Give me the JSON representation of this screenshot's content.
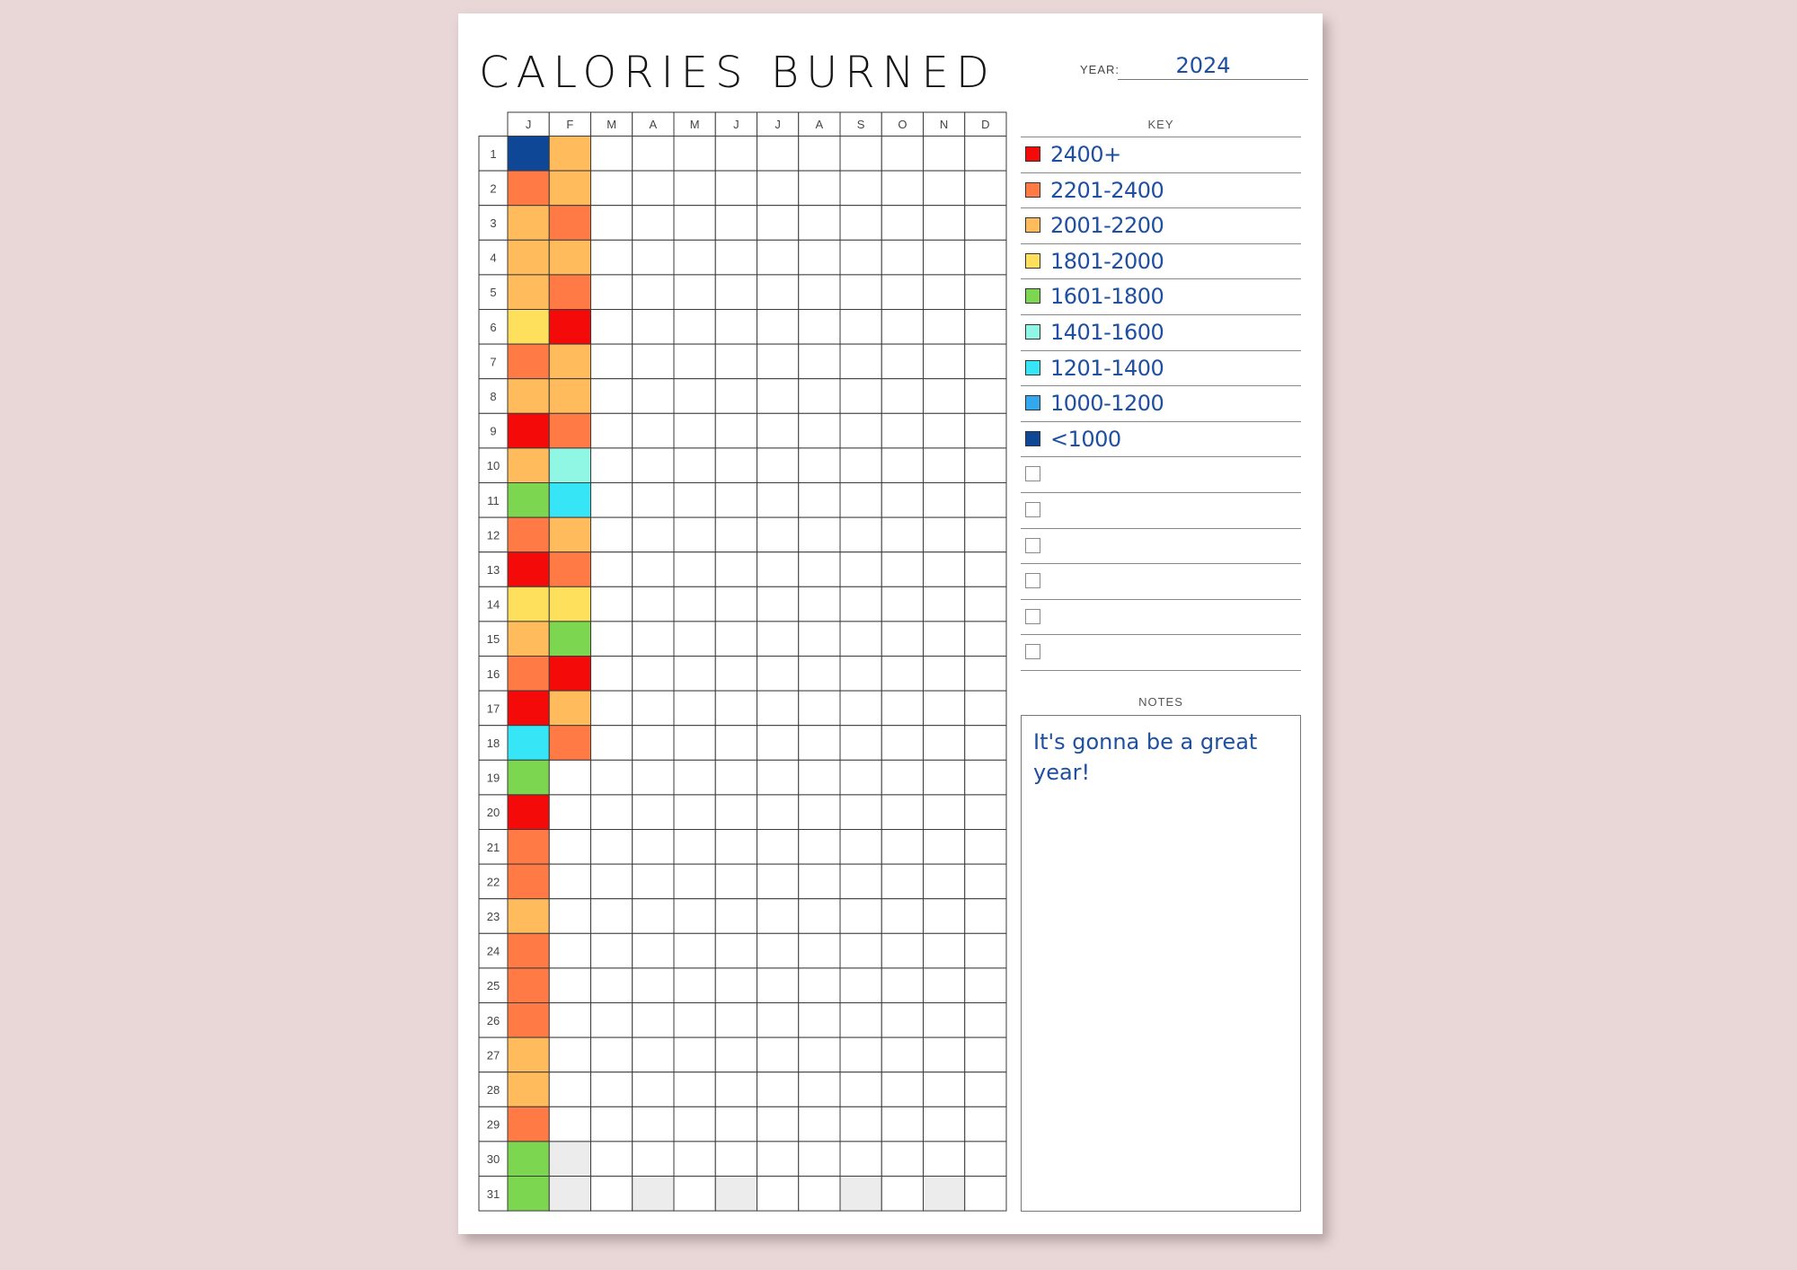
{
  "title": "CALORIES BURNED",
  "year_label": "YEAR:",
  "year": "2024",
  "months": [
    "J",
    "F",
    "M",
    "A",
    "M",
    "J",
    "J",
    "A",
    "S",
    "O",
    "N",
    "D"
  ],
  "days": [
    "1",
    "2",
    "3",
    "4",
    "5",
    "6",
    "7",
    "8",
    "9",
    "10",
    "11",
    "12",
    "13",
    "14",
    "15",
    "16",
    "17",
    "18",
    "19",
    "20",
    "21",
    "22",
    "23",
    "24",
    "25",
    "26",
    "27",
    "28",
    "29",
    "30",
    "31"
  ],
  "key_title": "KEY",
  "key": [
    {
      "label": "2400+",
      "color": "#f50a0a"
    },
    {
      "label": "2201-2400",
      "color": "#ff7a45"
    },
    {
      "label": "2001-2200",
      "color": "#ffbb5c"
    },
    {
      "label": "1801-2000",
      "color": "#ffe05c"
    },
    {
      "label": "1601-1800",
      "color": "#7dd650"
    },
    {
      "label": "1401-1600",
      "color": "#8ff7e4"
    },
    {
      "label": "1201-1400",
      "color": "#36e6f7"
    },
    {
      "label": "1000-1200",
      "color": "#33a8ee"
    },
    {
      "label": "<1000",
      "color": "#0d4796"
    },
    {
      "label": "",
      "color": ""
    },
    {
      "label": "",
      "color": ""
    },
    {
      "label": "",
      "color": ""
    },
    {
      "label": "",
      "color": ""
    },
    {
      "label": "",
      "color": ""
    },
    {
      "label": "",
      "color": ""
    }
  ],
  "tracker": {
    "J": [
      "<1000",
      "2201-2400",
      "2001-2200",
      "2001-2200",
      "2001-2200",
      "1801-2000",
      "2201-2400",
      "2001-2200",
      "2400+",
      "2001-2200",
      "1601-1800",
      "2201-2400",
      "2400+",
      "1801-2000",
      "2001-2200",
      "2201-2400",
      "2400+",
      "1201-1400",
      "1601-1800",
      "2400+",
      "2201-2400",
      "2201-2400",
      "2001-2200",
      "2201-2400",
      "2201-2400",
      "2201-2400",
      "2001-2200",
      "2001-2200",
      "2201-2400",
      "1601-1800",
      "1601-1800"
    ],
    "F": [
      "2001-2200",
      "2001-2200",
      "2201-2400",
      "2001-2200",
      "2201-2400",
      "2400+",
      "2001-2200",
      "2001-2200",
      "2201-2400",
      "1401-1600",
      "1201-1400",
      "2001-2200",
      "2201-2400",
      "1801-2000",
      "1601-1800",
      "2400+",
      "2001-2200",
      "2201-2400"
    ]
  },
  "unavailable_days": [
    {
      "month": 1,
      "day": 30
    },
    {
      "month": 1,
      "day": 31
    },
    {
      "month": 3,
      "day": 31
    },
    {
      "month": 5,
      "day": 31
    },
    {
      "month": 8,
      "day": 31
    },
    {
      "month": 10,
      "day": 31
    }
  ],
  "notes_title": "NOTES",
  "notes": "It's gonna be a great year!"
}
